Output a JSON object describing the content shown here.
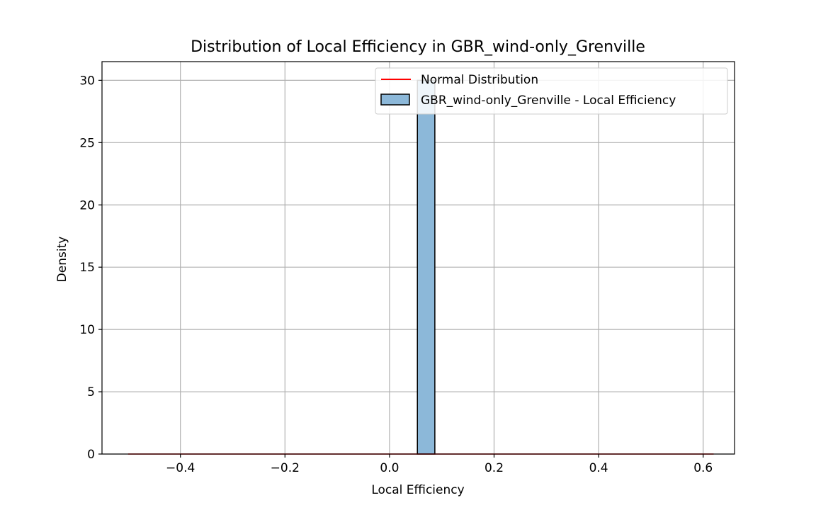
{
  "chart_data": {
    "type": "bar",
    "title": "Distribution of Local Efficiency in GBR_wind-only_Grenville",
    "xlabel": "Local Efficiency",
    "ylabel": "Density",
    "xlim": [
      -0.55,
      0.66
    ],
    "ylim": [
      0,
      31.5
    ],
    "xticks": [
      -0.4,
      -0.2,
      0.0,
      0.2,
      0.4,
      0.6
    ],
    "xtick_labels": [
      "−0.4",
      "−0.2",
      "0.0",
      "0.2",
      "0.4",
      "0.6"
    ],
    "yticks": [
      0,
      5,
      10,
      15,
      20,
      25,
      30
    ],
    "ytick_labels": [
      "0",
      "5",
      "10",
      "15",
      "20",
      "25",
      "30"
    ],
    "grid": true,
    "legend_position": "upper-right",
    "series": [
      {
        "kind": "histogram",
        "name": "GBR_wind-only_Grenville - Local Efficiency",
        "color": "#8cb8d9",
        "edge_color": "#000000",
        "bins": [
          {
            "x0": 0.0533,
            "x1": 0.0867,
            "value": 30
          }
        ]
      },
      {
        "kind": "line",
        "name": "Normal Distribution",
        "color": "#ff0000",
        "x": [
          -0.5,
          0.62
        ],
        "y": [
          0,
          0
        ]
      }
    ]
  }
}
